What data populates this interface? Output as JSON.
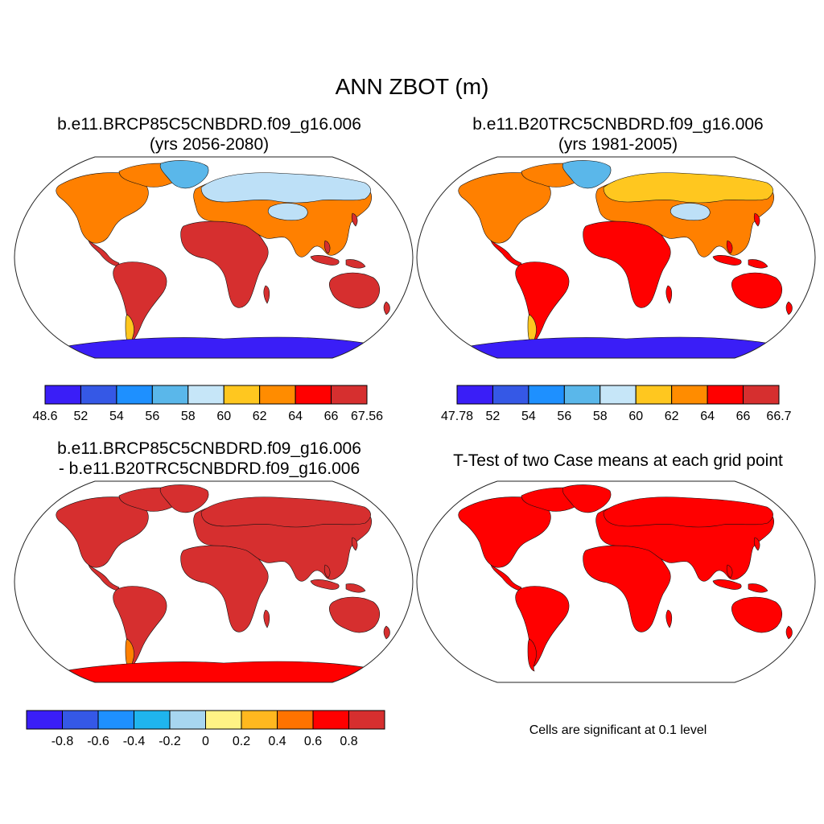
{
  "title": "ANN ZBOT (m)",
  "colors": {
    "land": [
      "#d62f2f",
      "#ff0000",
      "#ff8000",
      "#ffc71f"
    ],
    "cold": [
      "#bde0f7",
      "#5ab7ea",
      "#1e90ff",
      "#3a1ef7"
    ]
  },
  "panels": [
    {
      "title_line1": "b.e11.BRCP85C5CNBDRD.f09_g16.006",
      "title_line2": "(yrs 2056-2080)",
      "colorbar": {
        "colors": [
          "#3a1ef7",
          "#3558e6",
          "#1e90ff",
          "#5ab7ea",
          "#c6e6f8",
          "#ffc71f",
          "#ff8c00",
          "#ff0000",
          "#d62f2f"
        ],
        "labels": [
          "48.6",
          "52",
          "54",
          "56",
          "58",
          "60",
          "62",
          "64",
          "66",
          "67.56"
        ]
      }
    },
    {
      "title_line1": "b.e11.B20TRC5CNBDRD.f09_g16.006",
      "title_line2": "(yrs 1981-2005)",
      "colorbar": {
        "colors": [
          "#3a1ef7",
          "#3558e6",
          "#1e90ff",
          "#5ab7ea",
          "#c6e6f8",
          "#ffc71f",
          "#ff8c00",
          "#ff0000",
          "#d62f2f"
        ],
        "labels": [
          "47.78",
          "52",
          "54",
          "56",
          "58",
          "60",
          "62",
          "64",
          "66",
          "66.7"
        ]
      }
    },
    {
      "title_line1": "b.e11.BRCP85C5CNBDRD.f09_g16.006",
      "title_line2": "- b.e11.B20TRC5CNBDRD.f09_g16.006",
      "colorbar": {
        "colors": [
          "#3a1ef7",
          "#3558e6",
          "#1e90ff",
          "#1fb5ee",
          "#a7d6f0",
          "#fff385",
          "#ffb81f",
          "#ff7300",
          "#ff0000",
          "#d62f2f"
        ],
        "labels": [
          "-0.8",
          "-0.6",
          "-0.4",
          "-0.2",
          "0",
          "0.2",
          "0.4",
          "0.6",
          "0.8"
        ]
      }
    },
    {
      "title_line1": "T-Test of two Case means at each grid point",
      "note": "Cells are significant at 0.1 level"
    }
  ]
}
